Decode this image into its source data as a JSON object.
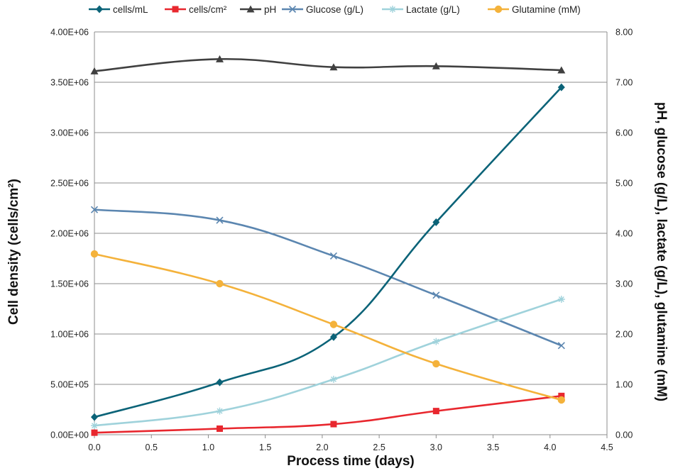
{
  "chart_data": {
    "type": "line",
    "xlabel": "Process time (days)",
    "ylabel_left": "Cell density (cells/cm²)",
    "ylabel_right": "pH, glucose (g/L), lactate (g/L), glutamine (mM)",
    "xlim": [
      0,
      4.5
    ],
    "x_ticks": [
      "0.0",
      "0.5",
      "1.0",
      "1.5",
      "2.0",
      "2.5",
      "3.0",
      "3.5",
      "4.0",
      "4.5"
    ],
    "ylim_left": [
      0,
      4000000
    ],
    "y_left_ticks": [
      "0.00E+00",
      "5.00E+05",
      "1.00E+06",
      "1.50E+06",
      "2.00E+06",
      "2.50E+06",
      "3.00E+06",
      "3.50E+06",
      "4.00E+06"
    ],
    "ylim_right": [
      0,
      8
    ],
    "y_right_ticks": [
      "0.00",
      "1.00",
      "2.00",
      "3.00",
      "4.00",
      "5.00",
      "6.00",
      "7.00",
      "8.00"
    ],
    "grid": "horizontal",
    "legend_position": "top",
    "x": [
      0.0,
      1.1,
      2.1,
      3.0,
      4.1
    ],
    "series": [
      {
        "name": "cells/mL",
        "axis": "left",
        "color": "#0b6378",
        "marker": "diamond",
        "values": [
          175000,
          520000,
          970000,
          2110000,
          3450000
        ]
      },
      {
        "name": "cells/cm²",
        "axis": "left",
        "color": "#e8272e",
        "marker": "square",
        "values": [
          20000,
          60000,
          105000,
          235000,
          385000
        ]
      },
      {
        "name": "pH",
        "axis": "right",
        "color": "#404040",
        "marker": "triangle",
        "values": [
          7.22,
          7.46,
          7.3,
          7.32,
          7.24
        ]
      },
      {
        "name": "Glucose (g/L)",
        "axis": "right",
        "color": "#5b86b0",
        "marker": "x",
        "values": [
          4.47,
          4.26,
          3.55,
          2.77,
          1.77
        ]
      },
      {
        "name": "Lactate (g/L)",
        "axis": "right",
        "color": "#9fd2db",
        "marker": "star",
        "values": [
          0.18,
          0.47,
          1.1,
          1.85,
          2.69
        ]
      },
      {
        "name": "Glutamine (mM)",
        "axis": "right",
        "color": "#f4b23b",
        "marker": "circle",
        "values": [
          3.59,
          3.0,
          2.19,
          1.41,
          0.69
        ]
      }
    ]
  }
}
